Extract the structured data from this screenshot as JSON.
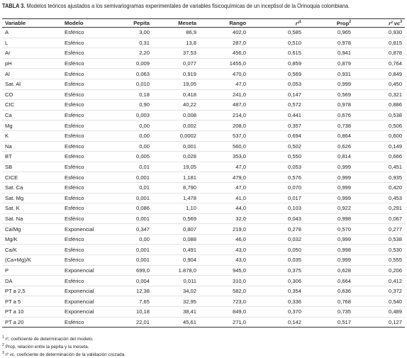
{
  "title": {
    "label": "TABLA 3.",
    "text": "Modelos teóricos ajustados a los semivariogramas experimentales de variables fisicoquímicas de un inceptisol de la Orinoquia colombiana."
  },
  "table": {
    "headers": [
      {
        "text": "Variable"
      },
      {
        "text": "Modelo"
      },
      {
        "text": "Pepita"
      },
      {
        "text": "Meseta"
      },
      {
        "text": "Rango"
      },
      {
        "text": "r²",
        "note": "1"
      },
      {
        "text": "Prop",
        "note": "2"
      },
      {
        "text": "r² vc",
        "note": "3"
      }
    ],
    "rows": [
      [
        "A",
        "Esférico",
        "3,00",
        "86,9",
        "402,0",
        "0,585",
        "0,965",
        "0,930"
      ],
      [
        "L",
        "Esférico",
        "0,31",
        "13,8",
        "287,0",
        "0,510",
        "0,978",
        "0,815"
      ],
      [
        "Ar",
        "Esférico",
        "2,20",
        "37,53",
        "456,0",
        "0,615",
        "0,941",
        "0,878"
      ],
      [
        "pH",
        "Esférico",
        "0,009",
        "0,077",
        "1455,0",
        "0,859",
        "0,879",
        "0,764"
      ],
      [
        "Al",
        "Esférico",
        "0,063",
        "0,919",
        "470,0",
        "0,569",
        "0,931",
        "0,849"
      ],
      [
        "Sat. Al",
        "Esférico",
        "0,010",
        "19,05",
        "47,0",
        "0,053",
        "0,999",
        "0,450"
      ],
      [
        "CO",
        "Esférico",
        "0,18",
        "0,418",
        "241,0",
        "0,147",
        "0,569",
        "0,321"
      ],
      [
        "CIC",
        "Esférico",
        "0,90",
        "40,22",
        "487,0",
        "0,572",
        "0,978",
        "0,886"
      ],
      [
        "Ca",
        "Esférico",
        "0,003",
        "0,008",
        "214,0",
        "0,441",
        "0,676",
        "0,538"
      ],
      [
        "Mg",
        "Esférico",
        "0,00",
        "0,002",
        "208,0",
        "0,357",
        "0,738",
        "0,506"
      ],
      [
        "K",
        "Esférico",
        "0,00",
        "0,0002",
        "537,0",
        "0,694",
        "0,864",
        "0,600"
      ],
      [
        "Na",
        "Esférico",
        "0,00",
        "0,001",
        "560,0",
        "0,502",
        "0,626",
        "0,149"
      ],
      [
        "BT",
        "Esférico",
        "0,005",
        "0,028",
        "353,0",
        "0,550",
        "0,814",
        "0,666"
      ],
      [
        "SB",
        "Esférico",
        "0,01",
        "19,05",
        "47,0",
        "0,053",
        "0,999",
        "0,451"
      ],
      [
        "CICE",
        "Esférico",
        "0,001",
        "1,181",
        "479,0",
        "0,576",
        "0,999",
        "0,935"
      ],
      [
        "Sat. Ca",
        "Esférico",
        "0,01",
        "8,790",
        "47,0",
        "0,070",
        "0,999",
        "0,420"
      ],
      [
        "Sat. Mg",
        "Esférico",
        "0,001",
        "1,478",
        "41,0",
        "0,017",
        "0,999",
        "0,453"
      ],
      [
        "Sat. K",
        "Esférico",
        "0,086",
        "1,10",
        "44,0",
        "0,103",
        "0,922",
        "0,291"
      ],
      [
        "Sat. Na",
        "Esférico",
        "0,001",
        "0,569",
        "32,0",
        "0,043",
        "0,998",
        "0,067"
      ],
      [
        "Ca/Mg",
        "Exponencial",
        "0,347",
        "0,807",
        "219,0",
        "0,278",
        "0,570",
        "0,277"
      ],
      [
        "Mg/K",
        "Esférico",
        "0,00",
        "0,088",
        "46,0",
        "0,032",
        "0,999",
        "0,538"
      ],
      [
        "Ca/K",
        "Esférico",
        "0,001",
        "0,491",
        "43,0",
        "0,050",
        "0,998",
        "0,530"
      ],
      [
        "(Ca+Mg)/K",
        "Esférico",
        "0,001",
        "0,904",
        "43,0",
        "0,035",
        "0,999",
        "0,555"
      ],
      [
        "P",
        "Exponencial",
        "699,0",
        "1.878,0",
        "945,0",
        "0,375",
        "0,628",
        "0,206"
      ],
      [
        "DA",
        "Esférico",
        "0,004",
        "0,011",
        "310,0",
        "0,306",
        "0,664",
        "0,412"
      ],
      [
        "PT a 2,5",
        "Exponencial",
        "12,38",
        "34,02",
        "582,0",
        "0,354",
        "0,636",
        "0,372"
      ],
      [
        "PT a 5",
        "Exponencial",
        "7,65",
        "32,95",
        "723,0",
        "0,336",
        "0,768",
        "0,540"
      ],
      [
        "PT a 10",
        "Exponencial",
        "10,18",
        "38,41",
        "849,0",
        "0,370",
        "0,735",
        "0,489"
      ],
      [
        "PT a 20",
        "Esférico",
        "22,01",
        "45,61",
        "271,0",
        "0,142",
        "0,517",
        "0,127"
      ]
    ]
  },
  "footnotes": [
    {
      "mark": "1",
      "text": "r², coeficiente de determinación del modelo."
    },
    {
      "mark": "2",
      "text": "Prop, relación entre la pepita y la meseta."
    },
    {
      "mark": "3",
      "text": "r² vc, coeficiente de determinación de la validación cruzada."
    }
  ]
}
